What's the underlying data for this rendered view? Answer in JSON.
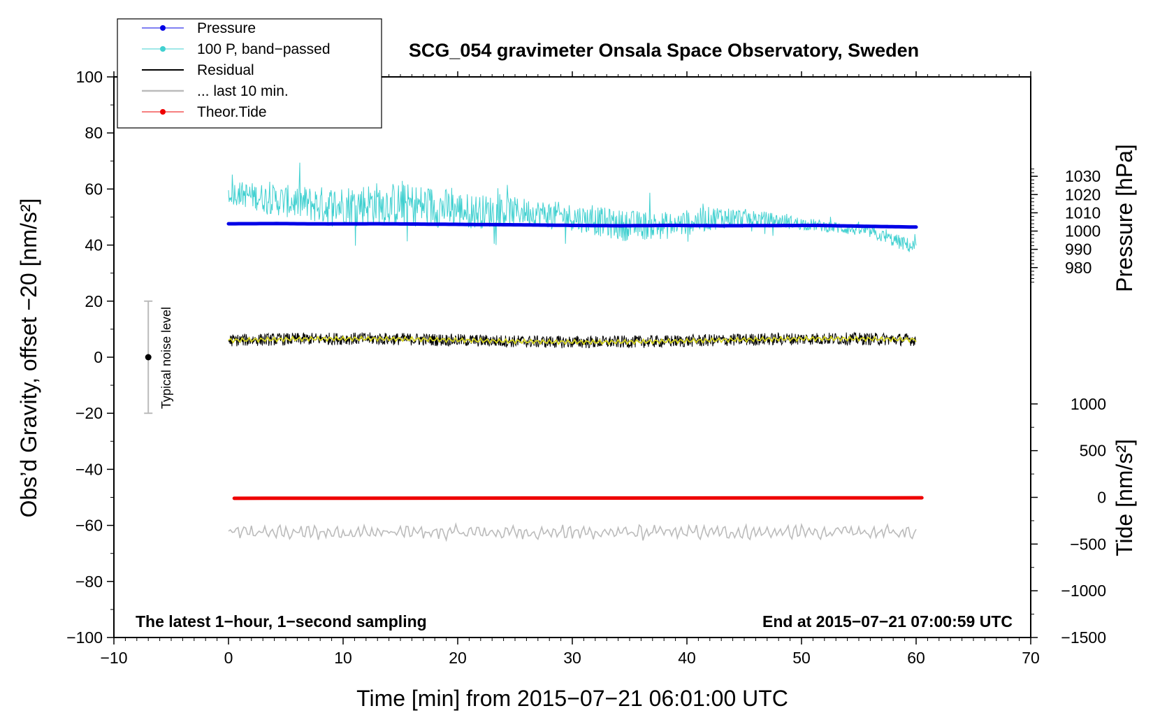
{
  "chart_data": {
    "type": "line",
    "title": "SCG_054 gravimeter Onsala Space Observatory, Sweden",
    "xlabel": "Time [min] from 2015−07−21 06:01:00 UTC",
    "ylabel_left": "Obs’d Gravity, offset −20 [nm/s²]",
    "ylabel_right_top": "Pressure [hPa]",
    "ylabel_right_bottom": "Tide [nm/s²]",
    "xlim": [
      -10,
      70
    ],
    "ylim": [
      -100,
      100
    ],
    "x_ticks": [
      -10,
      0,
      10,
      20,
      30,
      40,
      50,
      60,
      70
    ],
    "x_tick_labels": [
      "−10",
      "0",
      "10",
      "20",
      "30",
      "40",
      "50",
      "60",
      "70"
    ],
    "y_ticks": [
      -100,
      -80,
      -60,
      -40,
      -20,
      0,
      20,
      40,
      60,
      80,
      100
    ],
    "y_tick_labels": [
      "−100",
      "−80",
      "−60",
      "−40",
      "−20",
      "0",
      "20",
      "40",
      "60",
      "80",
      "100"
    ],
    "pressure_axis": {
      "ticks": [
        980,
        990,
        1000,
        1010,
        1020,
        1030
      ],
      "tick_labels": [
        "980",
        "990",
        "1000",
        "1010",
        "1020",
        "1030"
      ],
      "ref_pressure": 1000,
      "ref_left": 45.0,
      "left_per_hpa": 0.6513
    },
    "tide_axis": {
      "ticks": [
        -1500,
        -1000,
        -500,
        0,
        500,
        1000
      ],
      "tick_labels": [
        "−1500",
        "−1000",
        "−500",
        "0",
        "500",
        "1000"
      ],
      "ref_tide": 0,
      "ref_left": -50.0,
      "left_per_nms2": 0.03333
    },
    "legend": {
      "position": "top-left",
      "entries": [
        {
          "label": "Pressure",
          "color": "#0000e6",
          "marker": true
        },
        {
          "label": "100 P, band−passed",
          "color": "#40d0d0",
          "marker": true
        },
        {
          "label": "Residual",
          "color": "#000000",
          "marker": false
        },
        {
          "label": "... last 10 min.",
          "color": "#bbbbbb",
          "marker": false
        },
        {
          "label": "Theor.Tide",
          "color": "#ee0000",
          "marker": true
        }
      ]
    },
    "noise_bar": {
      "label": "Typical noise level",
      "x": -7,
      "center": 0,
      "low": -20,
      "high": 20
    },
    "series": [
      {
        "name": "Pressure",
        "color": "#0000e6",
        "x_start": 0,
        "x_end": 60,
        "values_hpa": [
          1004.0,
          1004.1,
          1003.9,
          1004.0,
          1003.8,
          1003.6,
          1003.4,
          1003.1,
          1002.9,
          1003.1,
          1002.9,
          1003.0,
          1003.1,
          1002.6,
          1002.2
        ]
      },
      {
        "name": "100 P, band-passed",
        "color": "#40d0d0",
        "x_start": 0,
        "x_end": 60,
        "envelope_mid": [
          59,
          56,
          54,
          55,
          54,
          52,
          52,
          50,
          47,
          47,
          50,
          49,
          47,
          45,
          39
        ],
        "envelope_amp": [
          6,
          8,
          10,
          11,
          11,
          9,
          7,
          7,
          8,
          7,
          6,
          4,
          3,
          3,
          4
        ]
      },
      {
        "name": "Residual",
        "color": "#000000",
        "x_start": 0,
        "x_end": 60,
        "mean": 6,
        "amplitude": 3
      },
      {
        "name": "Residual smoothed",
        "color": "#d6d620",
        "x_start": 0,
        "x_end": 60,
        "mean": 6,
        "amplitude": 0.8
      },
      {
        "name": "... last 10 min.",
        "color": "#bbbbbb",
        "x_start": 0,
        "x_end": 60,
        "mean": -62.5,
        "amplitude": 2.5
      },
      {
        "name": "Theor.Tide",
        "color": "#ee0000",
        "x_start": 0.5,
        "x_end": 60.5,
        "values_nms2": [
          -10,
          -5
        ]
      }
    ]
  },
  "annotations": {
    "bottom_left": "The latest 1−hour, 1−second sampling",
    "bottom_right": "End at 2015−07−21 07:00:59 UTC"
  }
}
